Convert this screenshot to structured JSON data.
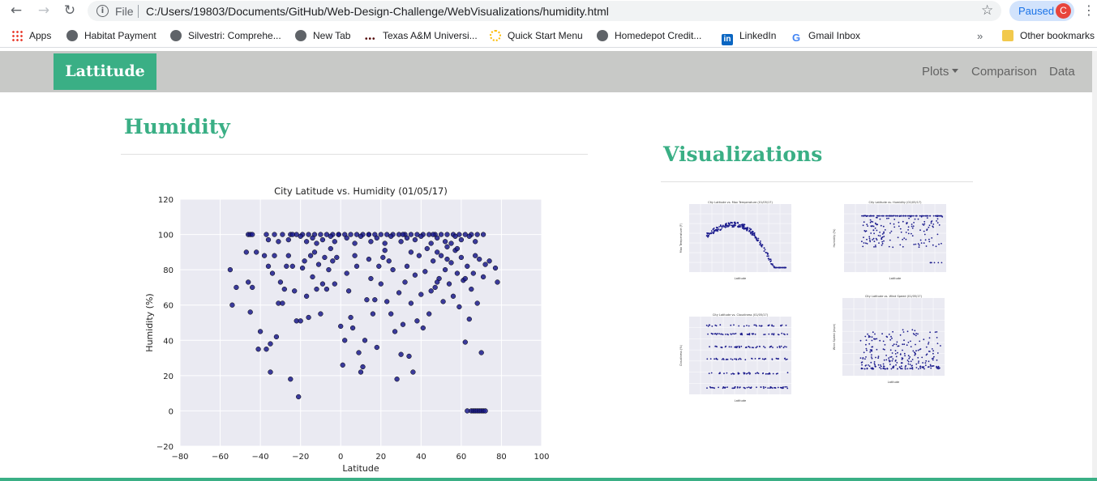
{
  "browser": {
    "back_glyph": "←",
    "forward_glyph": "→",
    "reload_glyph": "↻",
    "info_glyph": "i",
    "scheme": "File",
    "url": "C:/Users/19803/Documents/GitHub/Web-Design-Challenge/WebVisualizations/humidity.html",
    "star_glyph": "☆",
    "profile_status": "Paused",
    "profile_initial": "C",
    "menu_glyph": "⋮",
    "bookmarks": [
      {
        "label": "Apps",
        "icon": "apps-grid-icon"
      },
      {
        "label": "Habitat Payment",
        "icon": "globe-icon"
      },
      {
        "label": "Silvestri: Comprehe...",
        "icon": "globe-icon"
      },
      {
        "label": "New Tab",
        "icon": "globe-icon"
      },
      {
        "label": "Texas A&M Universi...",
        "icon": "tamu-icon"
      },
      {
        "label": "Quick Start Menu",
        "icon": "quickstart-icon"
      },
      {
        "label": "Homedepot Credit...",
        "icon": "globe-icon"
      },
      {
        "label": "LinkedIn",
        "icon": "linkedin-icon"
      },
      {
        "label": "Gmail Inbox",
        "icon": "google-icon"
      }
    ],
    "overflow_glyph": "»",
    "other_bookmarks": "Other bookmarks",
    "tamu_glyph": "•••",
    "linkedin_glyph": "in",
    "google_glyph": "G"
  },
  "navbar": {
    "brand": "Lattitude",
    "plots": "Plots",
    "comparison": "Comparison",
    "data": "Data",
    "color": "#3aaf85"
  },
  "main": {
    "title": "Humidity"
  },
  "sidebar": {
    "title": "Visualizations"
  },
  "chart_data": {
    "type": "scatter",
    "title": "City Latitude vs. Humidity (01/05/17)",
    "xlabel": "Latitude",
    "ylabel": "Humidity (%)",
    "xlim": [
      -80,
      100
    ],
    "ylim": [
      -20,
      120
    ],
    "xticks": [
      -80,
      -60,
      -40,
      -20,
      0,
      20,
      40,
      60,
      80,
      100
    ],
    "yticks": [
      -20,
      0,
      20,
      40,
      60,
      80,
      100,
      120
    ],
    "xtick_labels": [
      "−80",
      "−60",
      "−40",
      "−20",
      "0",
      "20",
      "40",
      "60",
      "80",
      "100"
    ],
    "ytick_labels": [
      "−20",
      "0",
      "20",
      "40",
      "60",
      "80",
      "100",
      "120"
    ],
    "grid": true,
    "marker_color": "#1b1b8c",
    "background": "#eaeaf2",
    "points": [
      [
        -46,
        100
      ],
      [
        -45,
        100
      ],
      [
        -37,
        100
      ],
      [
        -33,
        100
      ],
      [
        -29,
        100
      ],
      [
        -25,
        100
      ],
      [
        -22,
        100
      ],
      [
        -19,
        100
      ],
      [
        -16,
        100
      ],
      [
        -13,
        100
      ],
      [
        -10,
        100
      ],
      [
        -7,
        100
      ],
      [
        -4,
        100
      ],
      [
        -1,
        100
      ],
      [
        2,
        100
      ],
      [
        5,
        100
      ],
      [
        8,
        100
      ],
      [
        11,
        100
      ],
      [
        14,
        100
      ],
      [
        17,
        100
      ],
      [
        20,
        100
      ],
      [
        23,
        100
      ],
      [
        26,
        100
      ],
      [
        29,
        100
      ],
      [
        32,
        100
      ],
      [
        35,
        100
      ],
      [
        38,
        100
      ],
      [
        41,
        100
      ],
      [
        44,
        100
      ],
      [
        47,
        100
      ],
      [
        50,
        100
      ],
      [
        53,
        100
      ],
      [
        56,
        100
      ],
      [
        59,
        100
      ],
      [
        62,
        100
      ],
      [
        65,
        100
      ],
      [
        68,
        100
      ],
      [
        71,
        100
      ],
      [
        -20,
        99
      ],
      [
        -14,
        98
      ],
      [
        -9,
        97
      ],
      [
        -5,
        99
      ],
      [
        3,
        98
      ],
      [
        10,
        99
      ],
      [
        18,
        98
      ],
      [
        25,
        99
      ],
      [
        33,
        98
      ],
      [
        40,
        99
      ],
      [
        48,
        98
      ],
      [
        57,
        99
      ],
      [
        64,
        99
      ],
      [
        -36,
        97
      ],
      [
        -31,
        96
      ],
      [
        -26,
        97
      ],
      [
        -17,
        96
      ],
      [
        -12,
        95
      ],
      [
        -3,
        96
      ],
      [
        7,
        95
      ],
      [
        15,
        96
      ],
      [
        22,
        95
      ],
      [
        30,
        96
      ],
      [
        37,
        97
      ],
      [
        45,
        95
      ],
      [
        52,
        96
      ],
      [
        60,
        97
      ],
      [
        67,
        96
      ],
      [
        -55,
        80
      ],
      [
        -54,
        60
      ],
      [
        -52,
        70
      ],
      [
        -47,
        90
      ],
      [
        -46,
        73
      ],
      [
        -45,
        56
      ],
      [
        -44,
        70
      ],
      [
        -42,
        90
      ],
      [
        -41,
        35
      ],
      [
        -40,
        45
      ],
      [
        -38,
        88
      ],
      [
        -37,
        35
      ],
      [
        -36,
        82
      ],
      [
        -35,
        38
      ],
      [
        -35,
        22
      ],
      [
        -34,
        78
      ],
      [
        -33,
        88
      ],
      [
        -32,
        42
      ],
      [
        -31,
        61
      ],
      [
        -30,
        73
      ],
      [
        -29,
        61
      ],
      [
        -28,
        69
      ],
      [
        -27,
        82
      ],
      [
        -26,
        88
      ],
      [
        -25,
        18
      ],
      [
        -24,
        82
      ],
      [
        -23,
        68
      ],
      [
        -22,
        51
      ],
      [
        -21,
        8
      ],
      [
        -20,
        51
      ],
      [
        -19,
        81
      ],
      [
        -18,
        85
      ],
      [
        -17,
        65
      ],
      [
        -16,
        53
      ],
      [
        -15,
        88
      ],
      [
        -14,
        76
      ],
      [
        -13,
        90
      ],
      [
        -12,
        69
      ],
      [
        -11,
        83
      ],
      [
        -10,
        55
      ],
      [
        -9,
        72
      ],
      [
        -8,
        87
      ],
      [
        -7,
        69
      ],
      [
        -6,
        80
      ],
      [
        -5,
        92
      ],
      [
        -4,
        85
      ],
      [
        -3,
        72
      ],
      [
        -2,
        87
      ],
      [
        0,
        48
      ],
      [
        1,
        26
      ],
      [
        2,
        40
      ],
      [
        3,
        78
      ],
      [
        4,
        68
      ],
      [
        5,
        53
      ],
      [
        6,
        47
      ],
      [
        7,
        88
      ],
      [
        8,
        82
      ],
      [
        9,
        33
      ],
      [
        10,
        22
      ],
      [
        11,
        25
      ],
      [
        12,
        40
      ],
      [
        13,
        63
      ],
      [
        14,
        86
      ],
      [
        15,
        75
      ],
      [
        16,
        55
      ],
      [
        17,
        63
      ],
      [
        18,
        36
      ],
      [
        19,
        82
      ],
      [
        20,
        72
      ],
      [
        21,
        87
      ],
      [
        22,
        91
      ],
      [
        23,
        62
      ],
      [
        24,
        85
      ],
      [
        25,
        55
      ],
      [
        26,
        80
      ],
      [
        27,
        45
      ],
      [
        28,
        18
      ],
      [
        29,
        67
      ],
      [
        30,
        32
      ],
      [
        31,
        49
      ],
      [
        32,
        73
      ],
      [
        33,
        82
      ],
      [
        34,
        31
      ],
      [
        35,
        61
      ],
      [
        36,
        22
      ],
      [
        37,
        77
      ],
      [
        38,
        51
      ],
      [
        39,
        88
      ],
      [
        40,
        66
      ],
      [
        41,
        47
      ],
      [
        42,
        79
      ],
      [
        43,
        92
      ],
      [
        44,
        55
      ],
      [
        45,
        68
      ],
      [
        46,
        85
      ],
      [
        47,
        70
      ],
      [
        48,
        90
      ],
      [
        49,
        75
      ],
      [
        50,
        88
      ],
      [
        51,
        62
      ],
      [
        52,
        80
      ],
      [
        53,
        93
      ],
      [
        54,
        72
      ],
      [
        55,
        84
      ],
      [
        56,
        65
      ],
      [
        57,
        91
      ],
      [
        58,
        78
      ],
      [
        59,
        59
      ],
      [
        60,
        87
      ],
      [
        61,
        74
      ],
      [
        62,
        39
      ],
      [
        63,
        82
      ],
      [
        64,
        52
      ],
      [
        65,
        69
      ],
      [
        66,
        78
      ],
      [
        67,
        88
      ],
      [
        68,
        61
      ],
      [
        69,
        86
      ],
      [
        70,
        33
      ],
      [
        71,
        76
      ],
      [
        72,
        83
      ],
      [
        74,
        85
      ],
      [
        77,
        81
      ],
      [
        78,
        73
      ],
      [
        -1,
        100
      ],
      [
        14,
        100
      ],
      [
        31,
        100
      ],
      [
        46,
        100
      ],
      [
        63,
        0
      ],
      [
        65,
        0
      ],
      [
        66,
        0
      ],
      [
        67,
        0
      ],
      [
        68,
        0
      ],
      [
        69,
        0
      ],
      [
        70,
        0
      ],
      [
        71,
        0
      ],
      [
        72,
        0
      ],
      [
        -44,
        100
      ],
      [
        -24,
        100
      ],
      [
        53,
        86
      ],
      [
        58,
        92
      ],
      [
        62,
        75
      ],
      [
        48,
        73
      ],
      [
        35,
        90
      ],
      [
        55,
        95
      ]
    ]
  },
  "thumbnails": [
    {
      "type": "scatter",
      "title": "City Latitude vs. Max Temperature (01/05/17)",
      "xlabel": "Latitude",
      "ylabel": "Max Temperature (F)",
      "kind": "temperature"
    },
    {
      "type": "scatter",
      "title": "City Latitude vs. Humidity (01/05/17)",
      "xlabel": "Latitude",
      "ylabel": "Humidity (%)",
      "kind": "humidity"
    },
    {
      "type": "scatter",
      "title": "City Latitude vs. Cloudiness (01/05/17)",
      "xlabel": "Latitude",
      "ylabel": "Cloudiness (%)",
      "kind": "cloudiness"
    },
    {
      "type": "scatter",
      "title": "City Latitude vs. Wind Speed (01/05/17)",
      "xlabel": "Latitude",
      "ylabel": "Wind Speed (mph)",
      "kind": "wind"
    }
  ]
}
